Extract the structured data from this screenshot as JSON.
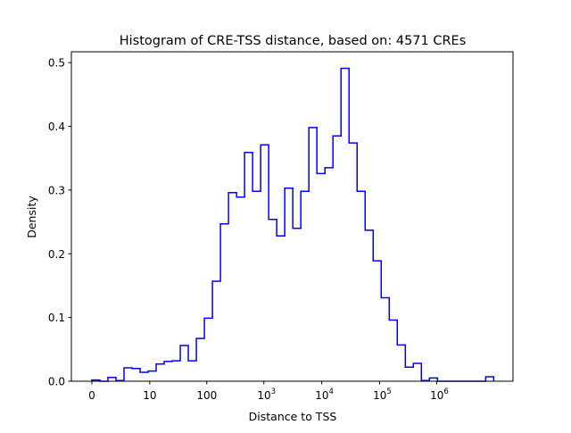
{
  "chart_data": {
    "type": "histogram",
    "title": "Histogram of CRE-TSS distance, based on: 4571 CREs",
    "xlabel": "Distance to TSS",
    "ylabel": "Density",
    "line_color": "#0000ff",
    "bin_count": 50,
    "xlim_bins": [
      -2.55,
      52.4
    ],
    "ylim": [
      0,
      0.517
    ],
    "values": [
      0.002,
      0,
      0.006,
      0.001,
      0.021,
      0.02,
      0.014,
      0.016,
      0.027,
      0.031,
      0.032,
      0.056,
      0.032,
      0.067,
      0.099,
      0.157,
      0.247,
      0.296,
      0.289,
      0.359,
      0.298,
      0.371,
      0.254,
      0.228,
      0.303,
      0.24,
      0.298,
      0.398,
      0.326,
      0.335,
      0.385,
      0.491,
      0.374,
      0.298,
      0.237,
      0.189,
      0.131,
      0.096,
      0.057,
      0.022,
      0.028,
      0.001,
      0.005,
      0,
      0,
      0,
      0,
      0,
      0,
      0.007
    ],
    "xticks": [
      {
        "pos": 0,
        "base": "0",
        "exp": ""
      },
      {
        "pos": 7.2,
        "base": "10",
        "exp": ""
      },
      {
        "pos": 14.3,
        "base": "100",
        "exp": ""
      },
      {
        "pos": 21.4,
        "base": "10",
        "exp": "3"
      },
      {
        "pos": 28.6,
        "base": "10",
        "exp": "4"
      },
      {
        "pos": 35.8,
        "base": "10",
        "exp": "5"
      },
      {
        "pos": 42.9,
        "base": "10",
        "exp": "6"
      }
    ],
    "yticks": [
      "0.0",
      "0.1",
      "0.2",
      "0.3",
      "0.4",
      "0.5"
    ],
    "ytick_values": [
      0,
      0.1,
      0.2,
      0.3,
      0.4,
      0.5
    ],
    "grid": false,
    "legend": "none"
  }
}
